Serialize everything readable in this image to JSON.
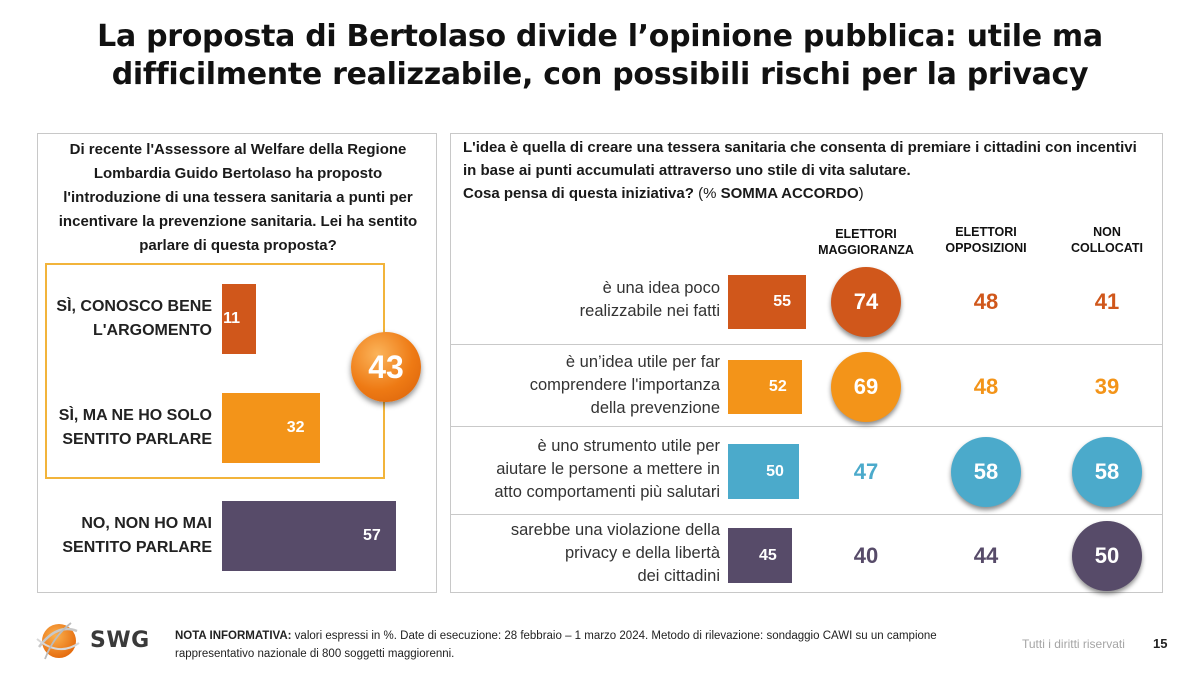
{
  "title_line1": "La proposta di Bertolaso divide l’opinione pubblica: utile ma",
  "title_line2": "difficilmente realizzabile, con possibili rischi per la privacy",
  "left_question": "Di recente l'Assessore al Welfare della Regione Lombardia Guido Bertolaso ha proposto l'introduzione di una tessera sanitaria a punti per incentivare la prevenzione sanitaria. Lei ha sentito parlare di questa proposta?",
  "right_question_line1": "L'idea è quella di creare una tessera sanitaria che consenta di premiare i cittadini con incentivi in base ai punti accumulati attraverso uno stile di vita salutare.",
  "right_question_line2": "Cosa pensa di questa iniziativa?",
  "right_question_paren_open": "(% ",
  "right_question_somma": "SOMMA ACCORDO",
  "right_question_paren_close": ")",
  "colors": {
    "dark_orange": "#d0571b",
    "orange": "#f39419",
    "blue": "#4baacb",
    "purple": "#574b69",
    "highlight": "#f2b43b"
  },
  "chart_data": [
    {
      "type": "bar",
      "orientation": "horizontal",
      "categories": [
        "SÌ, CONOSCO BENE L'ARGOMENTO",
        "SÌ, MA NE HO SOLO SENTITO PARLARE",
        "NO, NON HO MAI SENTITO PARLARE"
      ],
      "category_lines": [
        [
          "SÌ, CONOSCO BENE",
          "L'ARGOMENTO"
        ],
        [
          "SÌ, MA NE HO SOLO",
          "SENTITO PARLARE"
        ],
        [
          "NO, NON HO MAI",
          "SENTITO PARLARE"
        ]
      ],
      "values": [
        11,
        32,
        57
      ],
      "colors": [
        "#d0571b",
        "#f39419",
        "#574b69"
      ],
      "annotation": {
        "label": "43",
        "note": "sum of the first two answers"
      }
    },
    {
      "type": "bar",
      "orientation": "horizontal",
      "categories": [
        "è una idea poco realizzabile nei fatti",
        "è un’idea utile per far comprendere l'importanza della prevenzione",
        "è uno strumento utile per aiutare le persone a mettere in atto comportamenti più salutari",
        "sarebbe una violazione della privacy e della libertà dei cittadini"
      ],
      "category_lines": [
        [
          "è una idea poco",
          "realizzabile nei fatti"
        ],
        [
          "è un’idea utile per far",
          "comprendere l'importanza",
          "della prevenzione"
        ],
        [
          "è uno strumento utile per",
          "aiutare le persone a mettere in",
          "atto comportamenti più salutari"
        ],
        [
          "sarebbe una violazione della",
          "privacy e della libertà",
          "dei cittadini"
        ]
      ],
      "values": [
        55,
        52,
        50,
        45
      ],
      "colors": [
        "#d0571b",
        "#f39419",
        "#4baacb",
        "#574b69"
      ],
      "breakdown_headers": [
        [
          "ELETTORI",
          "MAGGIORANZA"
        ],
        [
          "ELETTORI",
          "OPPOSIZIONI"
        ],
        [
          "NON",
          "COLLOCATI"
        ]
      ],
      "breakdown": [
        {
          "name": "ELETTORI MAGGIORANZA",
          "values": [
            74,
            69,
            47,
            40
          ],
          "circled": [
            true,
            true,
            false,
            false
          ]
        },
        {
          "name": "ELETTORI OPPOSIZIONI",
          "values": [
            48,
            48,
            58,
            44
          ],
          "circled": [
            false,
            false,
            true,
            false
          ]
        },
        {
          "name": "NON COLLOCATI",
          "values": [
            41,
            39,
            58,
            50
          ],
          "circled": [
            false,
            false,
            true,
            true
          ]
        }
      ]
    }
  ],
  "footer": {
    "brand": "SWG",
    "note_label": "NOTA INFORMATIVA:",
    "note_text": " valori espressi in %. Date di esecuzione: 28 febbraio – 1 marzo 2024. Metodo di rilevazione: sondaggio CAWI su un campione rappresentativo nazionale di 800 soggetti maggiorenni.",
    "rights": "Tutti i diritti riservati",
    "page": "15"
  }
}
